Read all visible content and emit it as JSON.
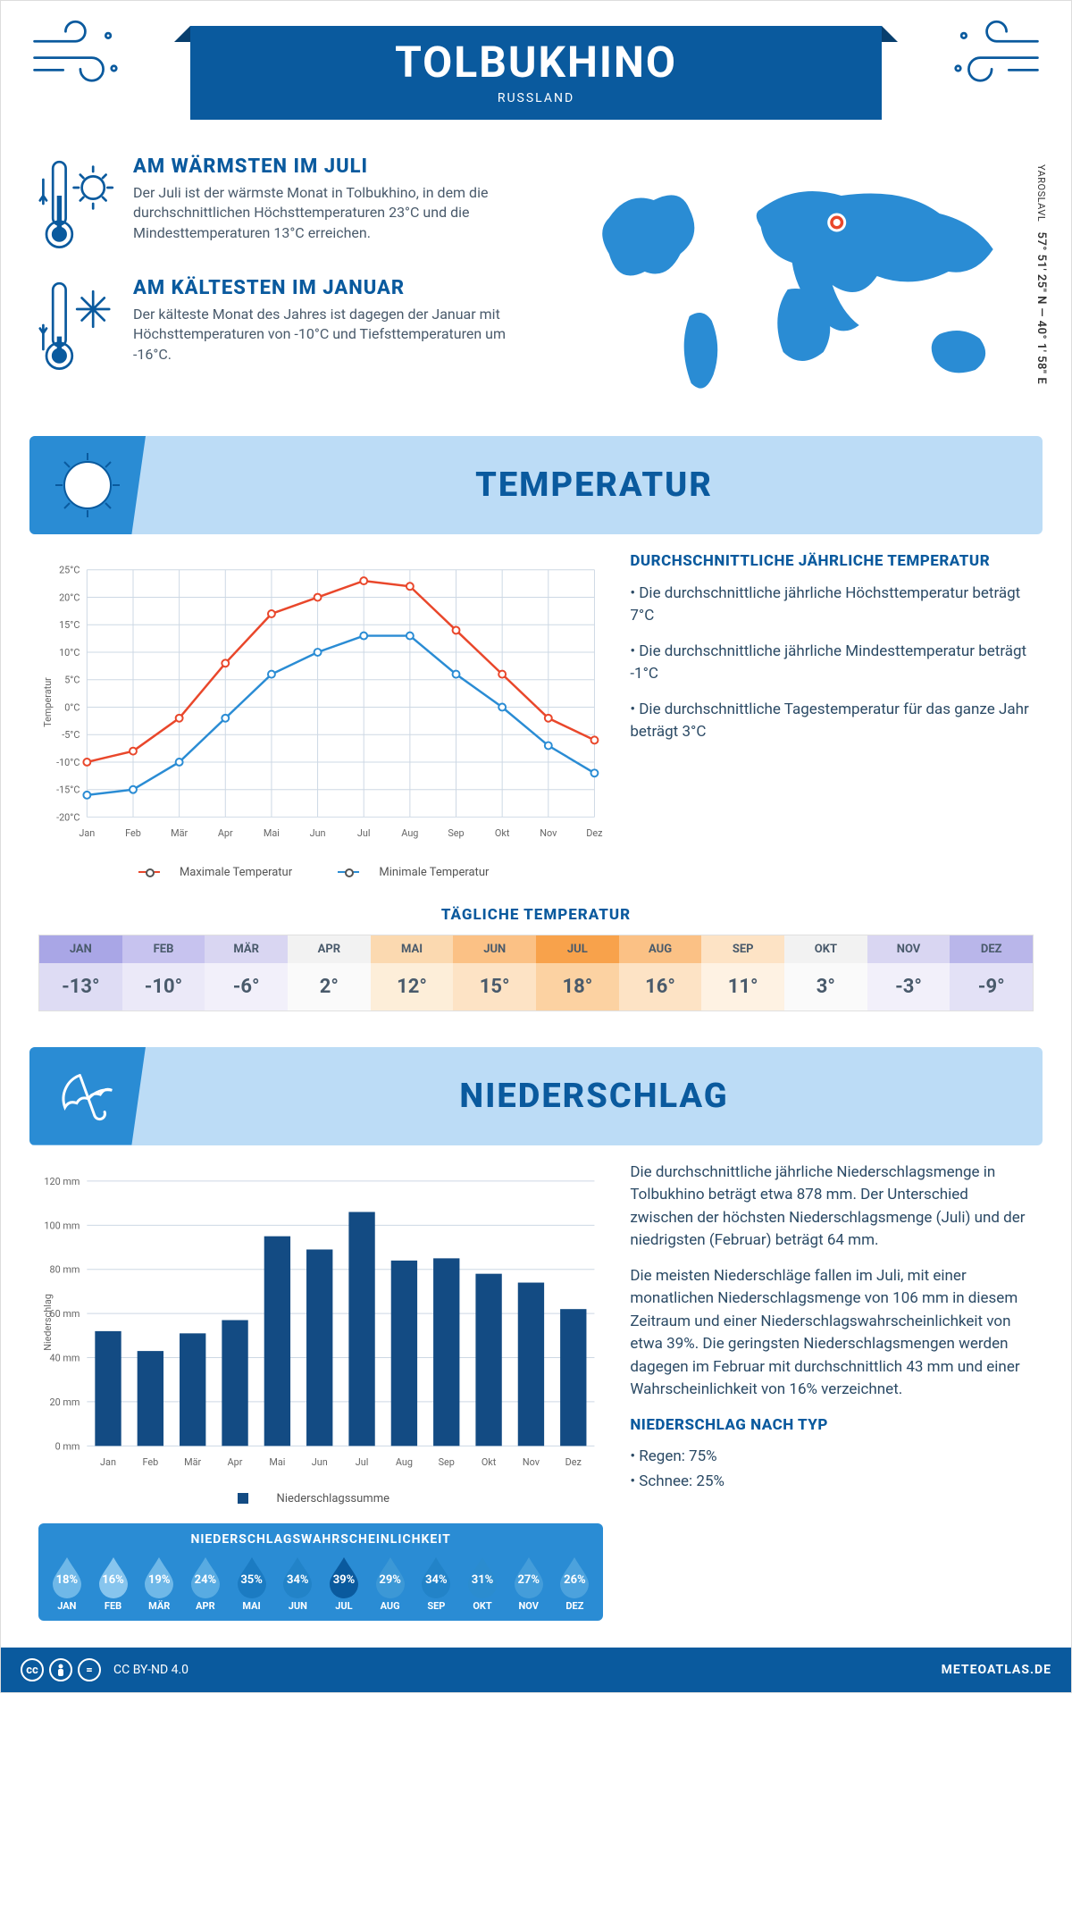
{
  "header": {
    "title": "TOLBUKHINO",
    "country": "RUSSLAND"
  },
  "coords": {
    "region": "YAROSLAVL",
    "text": "57° 51' 25\" N — 40° 1' 58\" E"
  },
  "facts": {
    "warm": {
      "title": "AM WÄRMSTEN IM JULI",
      "text": "Der Juli ist der wärmste Monat in Tolbukhino, in dem die durchschnittlichen Höchsttemperaturen 23°C und die Mindesttemperaturen 13°C erreichen."
    },
    "cold": {
      "title": "AM KÄLTESTEN IM JANUAR",
      "text": "Der kälteste Monat des Jahres ist dagegen der Januar mit Höchsttemperaturen von -10°C und Tiefsttemperaturen um -16°C."
    }
  },
  "colors": {
    "primary": "#0a5a9e",
    "accent": "#2a8cd4",
    "light": "#bcdcf6",
    "max_line": "#e9472b",
    "min_line": "#2a8cd4",
    "bar": "#134b83",
    "grid": "#cdd8e4",
    "text": "#495a6b"
  },
  "months": [
    "Jan",
    "Feb",
    "Mär",
    "Apr",
    "Mai",
    "Jun",
    "Jul",
    "Aug",
    "Sep",
    "Okt",
    "Nov",
    "Dez"
  ],
  "months_upper": [
    "JAN",
    "FEB",
    "MÄR",
    "APR",
    "MAI",
    "JUN",
    "JUL",
    "AUG",
    "SEP",
    "OKT",
    "NOV",
    "DEZ"
  ],
  "temp_section": {
    "title": "TEMPERATUR",
    "side_title": "DURCHSCHNITTLICHE JÄHRLICHE TEMPERATUR",
    "bullets": [
      "• Die durchschnittliche jährliche Höchsttemperatur beträgt 7°C",
      "• Die durchschnittliche jährliche Mindesttemperatur beträgt -1°C",
      "• Die durchschnittliche Tagestemperatur für das ganze Jahr beträgt 3°C"
    ],
    "legend_max": "Maximale Temperatur",
    "legend_min": "Minimale Temperatur",
    "ylabel": "Temperatur",
    "ylim": [
      -20,
      25
    ],
    "ytick_step": 5,
    "max": [
      -10,
      -8,
      -2,
      8,
      17,
      20,
      23,
      22,
      14,
      6,
      -2,
      -6
    ],
    "min": [
      -16,
      -15,
      -10,
      -2,
      6,
      10,
      13,
      13,
      6,
      0,
      -7,
      -12
    ]
  },
  "daily": {
    "title": "TÄGLICHE TEMPERATUR",
    "values": [
      "-13°",
      "-10°",
      "-6°",
      "2°",
      "12°",
      "15°",
      "18°",
      "16°",
      "11°",
      "3°",
      "-3°",
      "-9°"
    ],
    "head_colors": [
      "#a9a6e6",
      "#c7c3ef",
      "#d9d6f2",
      "#f2f2f2",
      "#fbd9b0",
      "#fbc185",
      "#f8a24b",
      "#fbc185",
      "#fde3c5",
      "#f2f2f2",
      "#d9d6f2",
      "#b9b6ea"
    ],
    "val_colors": [
      "#dedcf4",
      "#ebe9f8",
      "#f2f0fa",
      "#fafafa",
      "#fdeed9",
      "#fde3c5",
      "#fcd2a2",
      "#fde3c5",
      "#fef2e3",
      "#fafafa",
      "#f2f0fa",
      "#e3e1f6"
    ]
  },
  "precip_section": {
    "title": "NIEDERSCHLAG",
    "ylabel": "Niederschlag",
    "ylim": [
      0,
      120
    ],
    "ytick_step": 20,
    "values": [
      52,
      43,
      51,
      57,
      95,
      89,
      106,
      84,
      85,
      78,
      74,
      62
    ],
    "legend": "Niederschlagssumme",
    "para1": "Die durchschnittliche jährliche Niederschlagsmenge in Tolbukhino beträgt etwa 878 mm. Der Unterschied zwischen der höchsten Niederschlagsmenge (Juli) und der niedrigsten (Februar) beträgt 64 mm.",
    "para2": "Die meisten Niederschläge fallen im Juli, mit einer monatlichen Niederschlagsmenge von 106 mm in diesem Zeitraum und einer Niederschlagswahrscheinlichkeit von etwa 39%. Die geringsten Niederschlagsmengen werden dagegen im Februar mit durchschnittlich 43 mm und einer Wahrscheinlichkeit von 16% verzeichnet.",
    "type_title": "NIEDERSCHLAG NACH TYP",
    "type_rain": "• Regen: 75%",
    "type_snow": "• Schnee: 25%"
  },
  "prob": {
    "title": "NIEDERSCHLAGSWAHRSCHEINLICHKEIT",
    "values": [
      "18%",
      "16%",
      "19%",
      "24%",
      "35%",
      "34%",
      "39%",
      "29%",
      "34%",
      "31%",
      "27%",
      "26%"
    ],
    "fills": [
      "#6fb8e8",
      "#87c5ee",
      "#6fb8e8",
      "#58abe2",
      "#1b7bc2",
      "#2283c8",
      "#0a5a9e",
      "#3c98d6",
      "#2283c8",
      "#2b8ccf",
      "#449dda",
      "#4ca2dd"
    ]
  },
  "footer": {
    "license": "CC BY-ND 4.0",
    "site": "METEOATLAS.DE"
  }
}
